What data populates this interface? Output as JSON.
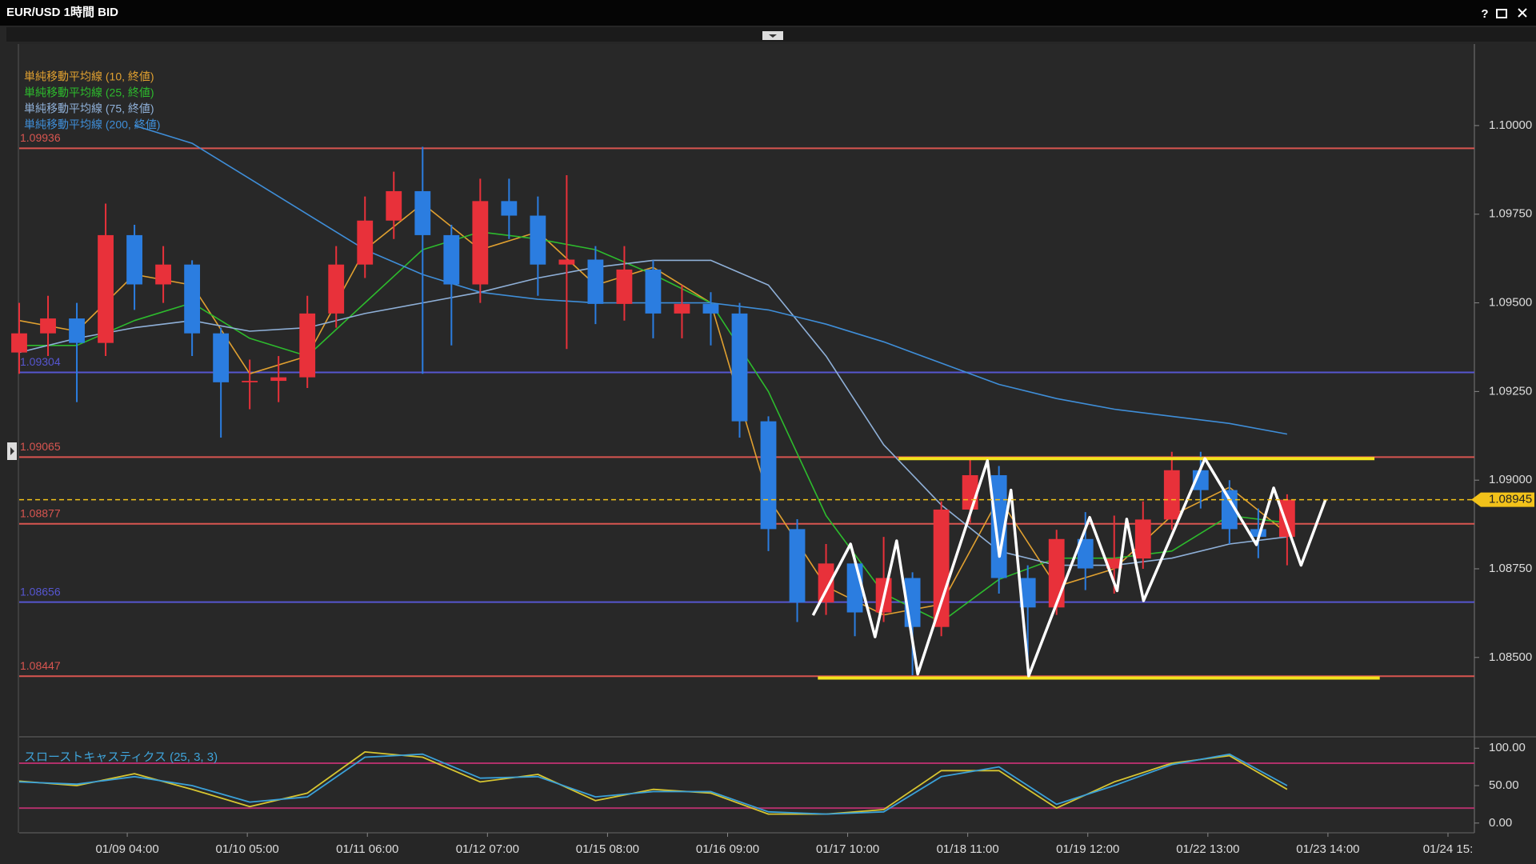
{
  "window": {
    "title": "EUR/USD 1時間 BID",
    "help": "?"
  },
  "chart_data": [
    {
      "type": "candlestick",
      "colors": {
        "up": "#e8313a",
        "down": "#2b7de0"
      },
      "xlim": [
        0,
        303
      ],
      "ylim": [
        1.08283,
        1.1023
      ],
      "yticks": [
        {
          "value": 1.085,
          "label": "1.08500"
        },
        {
          "value": 1.0875,
          "label": "1.08750"
        },
        {
          "value": 1.09,
          "label": "1.09000"
        },
        {
          "value": 1.0925,
          "label": "1.09250"
        },
        {
          "value": 1.095,
          "label": "1.09500"
        },
        {
          "value": 1.0975,
          "label": "1.09750"
        },
        {
          "value": 1.1,
          "label": "1.10000"
        }
      ],
      "x": [
        0,
        6,
        12,
        18,
        24,
        30,
        36,
        42,
        48,
        54,
        60,
        66,
        72,
        78,
        84,
        90,
        96,
        102,
        108,
        114,
        120,
        126,
        132,
        138,
        144,
        150,
        156,
        162,
        168,
        174,
        180,
        186,
        192,
        198,
        204,
        210,
        216,
        222,
        228,
        234,
        240,
        246,
        252,
        258,
        264
      ],
      "candles": [
        [
          1.0936,
          1.095,
          1.093,
          1.09414
        ],
        [
          1.09414,
          1.0952,
          1.0935,
          1.09456
        ],
        [
          1.09456,
          1.095,
          1.0922,
          1.09387
        ],
        [
          1.09387,
          1.0978,
          1.0935,
          1.09691
        ],
        [
          1.09691,
          1.0972,
          1.0948,
          1.09552
        ],
        [
          1.09552,
          1.0966,
          1.095,
          1.09608
        ],
        [
          1.09608,
          1.0962,
          1.0935,
          1.09414
        ],
        [
          1.09414,
          1.0943,
          1.0912,
          1.09276
        ],
        [
          1.09276,
          1.0934,
          1.092,
          1.0928
        ],
        [
          1.0928,
          1.0935,
          1.0922,
          1.0929
        ],
        [
          1.0929,
          1.0952,
          1.0926,
          1.0947
        ],
        [
          1.0947,
          1.0966,
          1.0943,
          1.09608
        ],
        [
          1.09608,
          1.098,
          1.0957,
          1.09732
        ],
        [
          1.09732,
          1.0987,
          1.0968,
          1.09815
        ],
        [
          1.09815,
          1.0994,
          1.093,
          1.09691
        ],
        [
          1.09691,
          1.0972,
          1.0938,
          1.09552
        ],
        [
          1.09552,
          1.0985,
          1.095,
          1.09787
        ],
        [
          1.09787,
          1.0985,
          1.0968,
          1.09746
        ],
        [
          1.09746,
          1.098,
          1.0952,
          1.09608
        ],
        [
          1.09608,
          1.0986,
          1.0937,
          1.09622
        ],
        [
          1.09622,
          1.0966,
          1.0944,
          1.09497
        ],
        [
          1.09497,
          1.0966,
          1.0945,
          1.09594
        ],
        [
          1.09594,
          1.0962,
          1.094,
          1.0947
        ],
        [
          1.0947,
          1.0955,
          1.094,
          1.09497
        ],
        [
          1.09497,
          1.0953,
          1.0938,
          1.0947
        ],
        [
          1.0947,
          1.095,
          1.0912,
          1.09166
        ],
        [
          1.09166,
          1.0918,
          1.088,
          1.08862
        ],
        [
          1.08862,
          1.0889,
          1.086,
          1.08655
        ],
        [
          1.08655,
          1.0882,
          1.0862,
          1.08765
        ],
        [
          1.08765,
          1.0878,
          1.0856,
          1.08627
        ],
        [
          1.08627,
          1.0884,
          1.086,
          1.08724
        ],
        [
          1.08724,
          1.0874,
          1.0845,
          1.08586
        ],
        [
          1.08586,
          1.0894,
          1.0856,
          1.08917
        ],
        [
          1.08917,
          1.0906,
          1.0888,
          1.09014
        ],
        [
          1.09014,
          1.0904,
          1.0868,
          1.08724
        ],
        [
          1.08724,
          1.0876,
          1.0845,
          1.08641
        ],
        [
          1.08641,
          1.0886,
          1.0862,
          1.08834
        ],
        [
          1.08834,
          1.0891,
          1.0869,
          1.08751
        ],
        [
          1.08751,
          1.089,
          1.0868,
          1.08779
        ],
        [
          1.08779,
          1.0894,
          1.0875,
          1.08889
        ],
        [
          1.08889,
          1.0908,
          1.0886,
          1.09028
        ],
        [
          1.09028,
          1.0908,
          1.0892,
          1.08972
        ],
        [
          1.08972,
          1.09,
          1.0882,
          1.08862
        ],
        [
          1.08862,
          1.0892,
          1.0878,
          1.0884
        ],
        [
          1.0884,
          1.0896,
          1.0876,
          1.08945
        ]
      ],
      "moving_averages": {
        "x": [
          0,
          12,
          24,
          36,
          48,
          60,
          72,
          84,
          96,
          108,
          120,
          132,
          144,
          156,
          168,
          180,
          192,
          204,
          216,
          228,
          240,
          252,
          264
        ],
        "series": [
          {
            "name": "単純移動平均線 (10, 終値)",
            "color": "#e0a030",
            "values": [
              1.0945,
              1.0942,
              1.0958,
              1.0955,
              1.093,
              1.0935,
              1.0965,
              1.0978,
              1.0965,
              1.097,
              1.0955,
              1.096,
              1.095,
              1.0895,
              1.087,
              1.0862,
              1.0865,
              1.0895,
              1.087,
              1.0875,
              1.089,
              1.0898,
              1.0885
            ]
          },
          {
            "name": "単純移動平均線 (25, 終値)",
            "color": "#2dbb2d",
            "values": [
              1.0938,
              1.0938,
              1.0945,
              1.095,
              1.094,
              1.0935,
              1.095,
              1.0965,
              1.097,
              1.0968,
              1.0965,
              1.0958,
              1.095,
              1.0925,
              1.089,
              1.0868,
              1.086,
              1.0872,
              1.0878,
              1.0878,
              1.088,
              1.089,
              1.0888
            ]
          },
          {
            "name": "単純移動平均線 (75, 終値)",
            "color": "#8fb0d8",
            "values": [
              1.0936,
              1.094,
              1.0943,
              1.0945,
              1.0942,
              1.0943,
              1.0947,
              1.095,
              1.0953,
              1.0957,
              1.096,
              1.0962,
              1.0962,
              1.0955,
              1.0935,
              1.091,
              1.0893,
              1.088,
              1.0876,
              1.0876,
              1.0878,
              1.0882,
              1.0884
            ]
          },
          {
            "name": "単純移動平均線 (200, 終値)",
            "color": "#3f8ed8",
            "values": [
              null,
              null,
              1.1,
              1.0995,
              1.0985,
              1.0975,
              1.0965,
              1.0958,
              1.0953,
              1.0951,
              1.095,
              1.095,
              1.095,
              1.0948,
              1.0944,
              1.0939,
              1.0933,
              1.0927,
              1.0923,
              1.092,
              1.0918,
              1.0916,
              1.0913
            ]
          }
        ]
      },
      "levels": [
        {
          "value": 1.09936,
          "color": "#d85550"
        },
        {
          "value": 1.09304,
          "color": "#5656d0"
        },
        {
          "value": 1.09065,
          "color": "#d85550"
        },
        {
          "value": 1.08877,
          "color": "#d85550"
        },
        {
          "value": 1.08656,
          "color": "#5656d0"
        },
        {
          "value": 1.08447,
          "color": "#d85550"
        }
      ],
      "current_price": {
        "value": 1.08945,
        "color": "#f2c21a"
      },
      "trend_lines": [
        {
          "color": "#f2e31c",
          "x": [
            183.1,
            282.2
          ],
          "y": [
            1.09061,
            1.09061
          ]
        },
        {
          "color": "#f2e31c",
          "x": [
            166.3,
            283.3
          ],
          "y": [
            1.08442,
            1.08442
          ]
        }
      ],
      "zigzag": {
        "color": "#ffffff",
        "x": [
          165.3,
          173.1,
          178.2,
          182.7,
          187.1,
          201.6,
          204.1,
          206.5,
          210.2,
          222.9,
          228.6,
          230.6,
          234.1,
          246.9,
          257.6,
          261.2,
          266.9,
          272.0
        ],
        "y": [
          1.08619,
          1.0882,
          1.08558,
          1.08829,
          1.08453,
          1.09055,
          1.08785,
          1.08972,
          1.08448,
          1.08895,
          1.08688,
          1.0889,
          1.0866,
          1.09061,
          1.08818,
          1.08978,
          1.0876,
          1.08945
        ]
      }
    },
    {
      "type": "line",
      "title": "スローストキャスティクス (25, 3, 3)",
      "title_color": "#3fa3d9",
      "xlim": [
        0,
        303
      ],
      "ylim": [
        -13,
        112
      ],
      "xticks": [
        {
          "value": 22.5,
          "label": "01/09 04:00"
        },
        {
          "value": 47.5,
          "label": "01/10 05:00"
        },
        {
          "value": 72.5,
          "label": "01/11 06:00"
        },
        {
          "value": 97.5,
          "label": "01/12 07:00"
        },
        {
          "value": 122.5,
          "label": "01/15 08:00"
        },
        {
          "value": 147.5,
          "label": "01/16 09:00"
        },
        {
          "value": 172.5,
          "label": "01/17 10:00"
        },
        {
          "value": 197.5,
          "label": "01/18 11:00"
        },
        {
          "value": 222.5,
          "label": "01/19 12:00"
        },
        {
          "value": 247.5,
          "label": "01/22 13:00"
        },
        {
          "value": 272.5,
          "label": "01/23 14:00"
        },
        {
          "value": 297.5,
          "label": "01/24 15:"
        }
      ],
      "yticks": [
        {
          "value": 0,
          "label": "0.00"
        },
        {
          "value": 50,
          "label": "50.00"
        },
        {
          "value": 100,
          "label": "100.00"
        }
      ],
      "levels": [
        {
          "value": 80,
          "color": "#b0306a"
        },
        {
          "value": 20,
          "color": "#b0306a"
        }
      ],
      "x": [
        0,
        12,
        24,
        36,
        48,
        60,
        72,
        84,
        96,
        108,
        120,
        132,
        144,
        156,
        168,
        180,
        192,
        204,
        216,
        228,
        240,
        252,
        264
      ],
      "series": [
        {
          "color": "#d6c531",
          "values": [
            56,
            50,
            66,
            45,
            22,
            40,
            95,
            88,
            55,
            65,
            30,
            45,
            40,
            12,
            12,
            18,
            70,
            70,
            20,
            55,
            80,
            90,
            45
          ]
        },
        {
          "color": "#3aa0d8",
          "values": [
            55,
            52,
            62,
            50,
            28,
            35,
            88,
            92,
            60,
            62,
            35,
            42,
            42,
            15,
            12,
            15,
            62,
            75,
            25,
            50,
            78,
            92,
            50
          ]
        }
      ]
    }
  ]
}
